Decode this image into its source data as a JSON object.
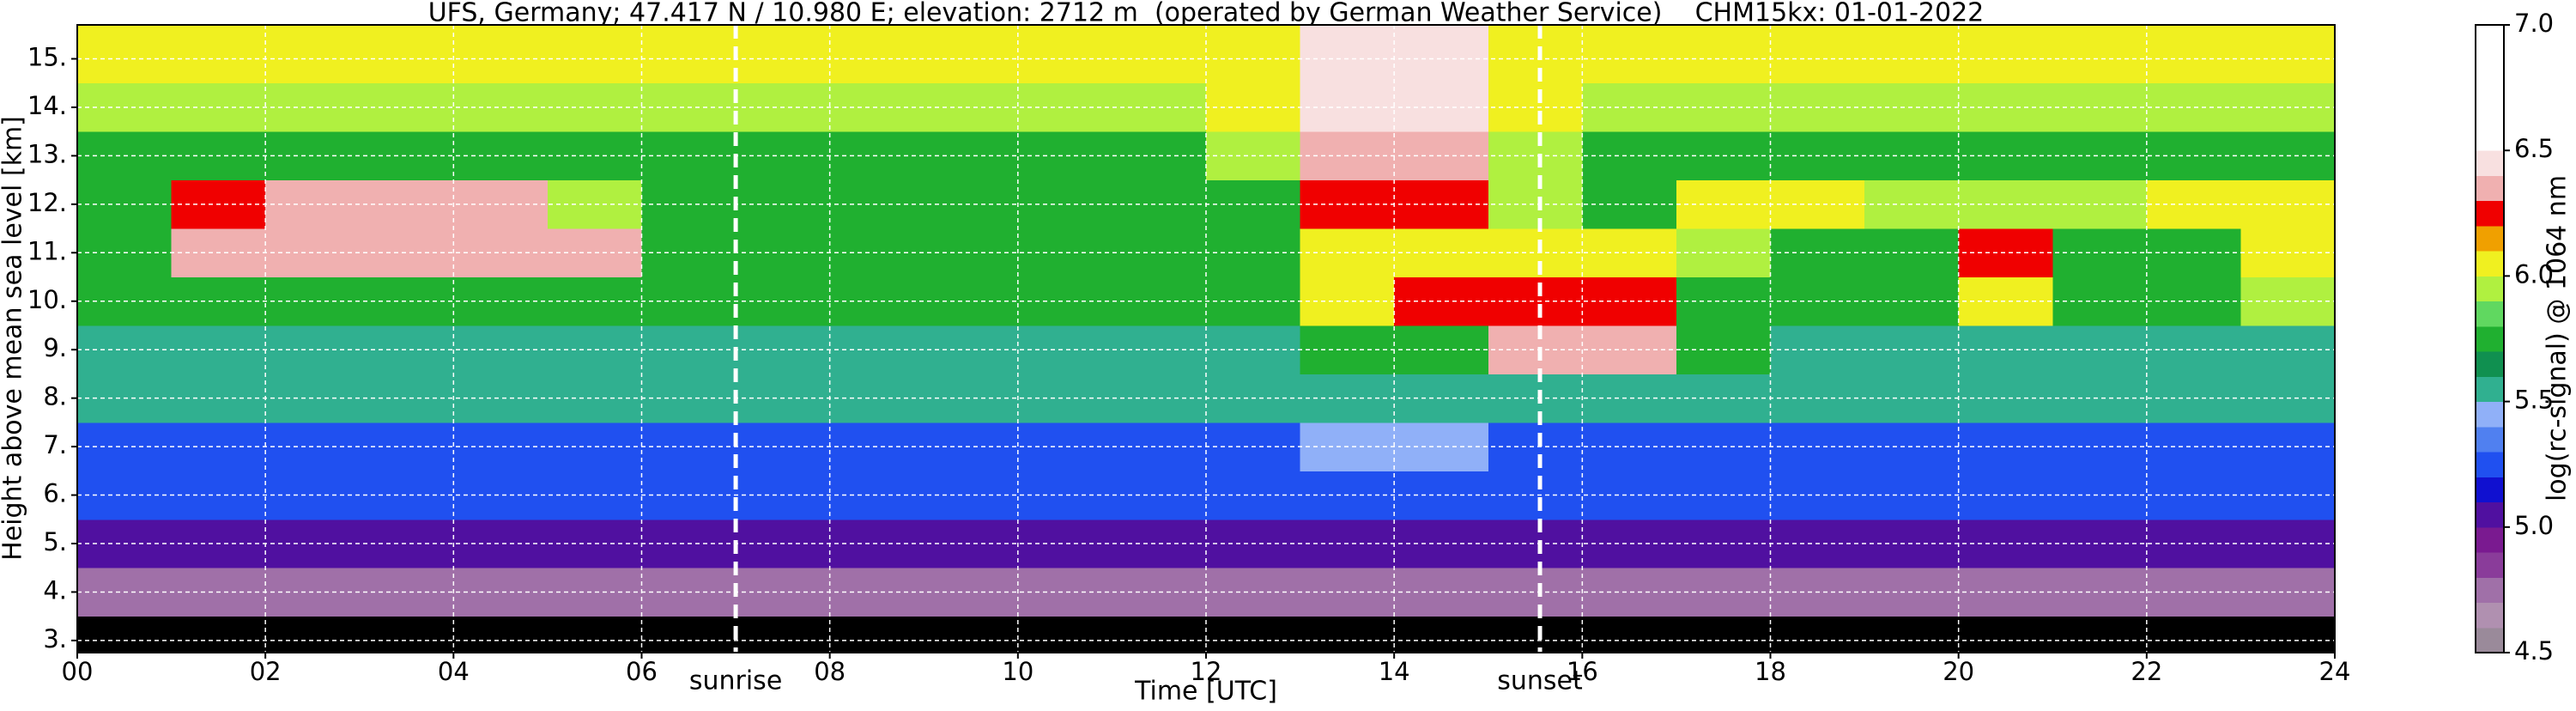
{
  "chart_data": {
    "type": "heatmap",
    "title": "UFS, Germany; 47.417 N / 10.980 E; elevation: 2712 m  (operated by German Weather Service)    CHM15kx: 01-01-2022",
    "xlabel": "Time [UTC]",
    "ylabel": "Height above mean sea level [km]",
    "xlim": [
      0,
      24
    ],
    "xticks": [
      {
        "value": 0,
        "label": "00"
      },
      {
        "value": 2,
        "label": "02"
      },
      {
        "value": 4,
        "label": "04"
      },
      {
        "value": 6,
        "label": "06"
      },
      {
        "value": 8,
        "label": "08"
      },
      10,
      12,
      14,
      16,
      18,
      20,
      22,
      24
    ],
    "ylim": [
      2.75,
      15.7
    ],
    "yticks": [
      {
        "value": 3,
        "label": "3."
      },
      {
        "value": 4,
        "label": "4."
      },
      {
        "value": 5,
        "label": "5."
      },
      {
        "value": 6,
        "label": "6."
      },
      {
        "value": 7,
        "label": "7."
      },
      {
        "value": 8,
        "label": "8."
      },
      {
        "value": 9,
        "label": "9."
      },
      {
        "value": 10,
        "label": "10."
      },
      {
        "value": 11,
        "label": "11."
      },
      {
        "value": 12,
        "label": "12."
      },
      {
        "value": 13,
        "label": "13."
      },
      {
        "value": 14,
        "label": "14."
      },
      {
        "value": 15,
        "label": "15."
      }
    ],
    "grid": true,
    "grid_color": "#ffffff",
    "background_color": "#000000",
    "annotations": [
      {
        "text": "sunrise",
        "x": 7.0,
        "color": "#ffffff"
      },
      {
        "text": "sunset",
        "x": 15.55,
        "color": "#ffffff"
      }
    ],
    "colorbar": {
      "label": "log(rc-signal) @ 1064 nm",
      "zlim": [
        4.5,
        7.0
      ],
      "ticks": [
        4.5,
        {
          "value": 5,
          "label": "5.0"
        },
        5.5,
        {
          "value": 6,
          "label": "6.0"
        },
        6.5,
        {
          "value": 7,
          "label": "7.0"
        }
      ],
      "colors": [
        "#9a8a9a",
        "#b090b0",
        "#a070a8",
        "#8a3c9a",
        "#7a1a90",
        "#5010a0",
        "#1010d0",
        "#2050f0",
        "#5080f0",
        "#90b0f8",
        "#30b090",
        "#109050",
        "#20b030",
        "#60d860",
        "#b0f040",
        "#f0f020",
        "#f0a000",
        "#f00000",
        "#f0b0b0",
        "#f8e0e0",
        "#ffffff",
        "#ffffff",
        "#ffffff",
        "#ffffff",
        "#ffffff"
      ]
    },
    "heatmap": {
      "x_edges": [
        0,
        1,
        2,
        3,
        4,
        5,
        6,
        7,
        8,
        9,
        10,
        11,
        12,
        13,
        14,
        15,
        16,
        17,
        18,
        19,
        20,
        21,
        22,
        23,
        24
      ],
      "y_edges": [
        2.75,
        3.5,
        4.5,
        5.5,
        6.5,
        7.5,
        8.5,
        9.5,
        10.5,
        11.5,
        12.5,
        13.5,
        14.5,
        15.5,
        15.7
      ],
      "values": [
        [
          null,
          null,
          null,
          null,
          null,
          null,
          null,
          null,
          null,
          null,
          null,
          null,
          null,
          null,
          null,
          null,
          null,
          null,
          null,
          null,
          null,
          null,
          null,
          null
        ],
        [
          4.8,
          4.8,
          4.8,
          4.8,
          4.8,
          4.8,
          4.8,
          4.8,
          4.8,
          4.8,
          4.8,
          4.8,
          4.8,
          4.8,
          4.8,
          4.8,
          4.8,
          4.8,
          4.8,
          4.8,
          4.8,
          4.8,
          4.8,
          4.8
        ],
        [
          5.0,
          5.0,
          5.0,
          5.0,
          5.0,
          5.0,
          5.0,
          5.0,
          5.0,
          5.0,
          5.0,
          5.0,
          5.0,
          5.0,
          5.0,
          5.0,
          5.0,
          5.0,
          5.0,
          5.0,
          5.0,
          5.0,
          5.0,
          5.0
        ],
        [
          5.2,
          5.2,
          5.2,
          5.2,
          5.2,
          5.2,
          5.2,
          5.2,
          5.2,
          5.2,
          5.2,
          5.2,
          5.2,
          5.2,
          5.2,
          5.2,
          5.2,
          5.2,
          5.2,
          5.2,
          5.2,
          5.2,
          5.2,
          5.2
        ],
        [
          5.3,
          5.3,
          5.3,
          5.3,
          5.3,
          5.3,
          5.3,
          5.3,
          5.3,
          5.3,
          5.3,
          5.3,
          5.3,
          5.4,
          5.4,
          5.3,
          5.3,
          5.3,
          5.3,
          5.3,
          5.3,
          5.3,
          5.3,
          5.3
        ],
        [
          5.5,
          5.5,
          5.5,
          5.5,
          5.5,
          5.5,
          5.5,
          5.5,
          5.5,
          5.5,
          5.5,
          5.5,
          5.5,
          5.6,
          5.6,
          5.5,
          5.5,
          5.5,
          5.5,
          5.5,
          5.5,
          5.5,
          5.5,
          5.5
        ],
        [
          5.6,
          5.6,
          5.6,
          5.6,
          5.6,
          5.6,
          5.6,
          5.6,
          5.6,
          5.6,
          5.6,
          5.6,
          5.6,
          5.7,
          5.7,
          6.3,
          6.3,
          5.7,
          5.6,
          5.6,
          5.6,
          5.6,
          5.6,
          5.6
        ],
        [
          5.7,
          5.7,
          5.7,
          5.7,
          5.7,
          5.7,
          5.7,
          5.7,
          5.7,
          5.7,
          5.7,
          5.7,
          5.7,
          6.1,
          6.2,
          6.2,
          6.2,
          5.8,
          5.7,
          5.7,
          6.1,
          5.7,
          5.7,
          5.9
        ],
        [
          5.8,
          6.3,
          6.3,
          6.3,
          6.3,
          6.3,
          5.8,
          5.8,
          5.8,
          5.8,
          5.8,
          5.8,
          5.8,
          6.0,
          6.1,
          6.1,
          6.1,
          5.9,
          5.8,
          5.8,
          6.2,
          5.8,
          5.8,
          6.0
        ],
        [
          5.8,
          6.2,
          6.3,
          6.3,
          6.3,
          5.9,
          5.8,
          5.8,
          5.8,
          5.8,
          5.8,
          5.8,
          5.8,
          6.2,
          6.2,
          5.9,
          5.8,
          6.0,
          6.0,
          5.9,
          5.9,
          5.9,
          6.1,
          6.1
        ],
        [
          5.8,
          5.8,
          5.8,
          5.8,
          5.8,
          5.8,
          5.8,
          5.8,
          5.8,
          5.8,
          5.8,
          5.8,
          5.9,
          6.3,
          6.3,
          5.9,
          5.8,
          5.8,
          5.8,
          5.8,
          5.8,
          5.8,
          5.8,
          5.8
        ],
        [
          5.9,
          5.9,
          5.9,
          5.9,
          5.9,
          5.9,
          5.9,
          5.9,
          5.9,
          5.9,
          5.9,
          5.9,
          6.0,
          6.4,
          6.4,
          6.0,
          5.9,
          5.9,
          5.9,
          5.9,
          5.9,
          5.9,
          5.9,
          5.9
        ],
        [
          6.0,
          6.0,
          6.0,
          6.0,
          6.0,
          6.0,
          6.0,
          6.0,
          6.0,
          6.0,
          6.0,
          6.0,
          6.1,
          6.4,
          6.4,
          6.1,
          6.0,
          6.0,
          6.0,
          6.0,
          6.0,
          6.0,
          6.0,
          6.0
        ],
        [
          6.0,
          6.0,
          6.0,
          6.0,
          6.0,
          6.0,
          6.0,
          6.0,
          6.0,
          6.0,
          6.0,
          6.0,
          6.1,
          6.4,
          6.4,
          6.1,
          6.0,
          6.0,
          6.0,
          6.0,
          6.0,
          6.0,
          6.0,
          6.0
        ]
      ]
    }
  }
}
